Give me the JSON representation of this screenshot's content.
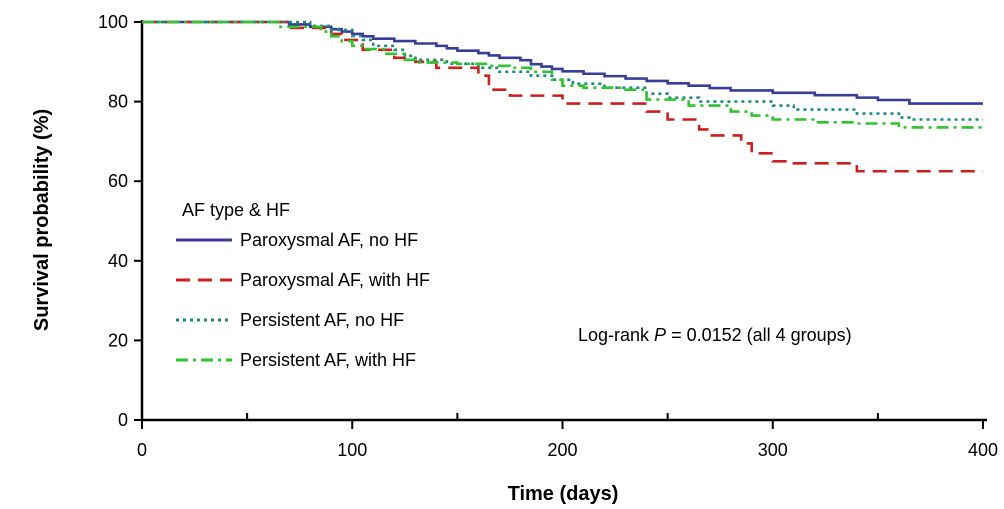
{
  "chart_data": {
    "type": "line",
    "step": true,
    "xlabel": "Time (days)",
    "ylabel": "Survival probability (%)",
    "xlim": [
      0,
      400
    ],
    "ylim": [
      0,
      100
    ],
    "xticks": [
      0,
      100,
      200,
      300,
      400
    ],
    "yticks": [
      0,
      20,
      40,
      60,
      80,
      100
    ],
    "x_minor_step": 50,
    "grid": false,
    "legend": {
      "title": "AF type & HF",
      "position": "lower-left"
    },
    "annotation": {
      "prefix": "Log-rank ",
      "p_symbol": "P",
      "suffix": " = 0.0152 (all 4 groups)"
    },
    "series": [
      {
        "name": "Paroxysmal AF, no HF",
        "color": "#3a3c9a",
        "dash": "solid",
        "points": [
          [
            0,
            100
          ],
          [
            65,
            100
          ],
          [
            70,
            99.4
          ],
          [
            80,
            98.8
          ],
          [
            90,
            98.2
          ],
          [
            95,
            97.6
          ],
          [
            100,
            97
          ],
          [
            105,
            96.4
          ],
          [
            110,
            95.8
          ],
          [
            120,
            95.2
          ],
          [
            130,
            94.6
          ],
          [
            140,
            94
          ],
          [
            145,
            93.4
          ],
          [
            150,
            92.8
          ],
          [
            160,
            92.2
          ],
          [
            165,
            91.6
          ],
          [
            170,
            91
          ],
          [
            180,
            90.4
          ],
          [
            185,
            89.4
          ],
          [
            190,
            88.8
          ],
          [
            195,
            88.2
          ],
          [
            200,
            87.6
          ],
          [
            210,
            87
          ],
          [
            220,
            86.4
          ],
          [
            230,
            85.8
          ],
          [
            240,
            85.2
          ],
          [
            250,
            84.6
          ],
          [
            260,
            84
          ],
          [
            270,
            83.4
          ],
          [
            280,
            82.8
          ],
          [
            300,
            82.2
          ],
          [
            320,
            81.6
          ],
          [
            340,
            81
          ],
          [
            350,
            80.4
          ],
          [
            365,
            79.5
          ],
          [
            400,
            79.5
          ]
        ]
      },
      {
        "name": "Paroxysmal AF, with HF",
        "color": "#cc1f1f",
        "dash": "long-dash",
        "points": [
          [
            0,
            100
          ],
          [
            65,
            100
          ],
          [
            70,
            98.5
          ],
          [
            90,
            97
          ],
          [
            95,
            95.5
          ],
          [
            105,
            93
          ],
          [
            120,
            91
          ],
          [
            130,
            90
          ],
          [
            140,
            88.5
          ],
          [
            160,
            86.5
          ],
          [
            165,
            83
          ],
          [
            175,
            81.5
          ],
          [
            200,
            79.5
          ],
          [
            240,
            77.5
          ],
          [
            250,
            75.5
          ],
          [
            265,
            73
          ],
          [
            270,
            71.5
          ],
          [
            285,
            69.5
          ],
          [
            290,
            67
          ],
          [
            300,
            65
          ],
          [
            310,
            64.5
          ],
          [
            340,
            62.5
          ],
          [
            400,
            62.5
          ]
        ]
      },
      {
        "name": "Persistent AF, no HF",
        "color": "#1a8c7a",
        "dash": "dotted",
        "points": [
          [
            0,
            100
          ],
          [
            75,
            100
          ],
          [
            80,
            99
          ],
          [
            90,
            98
          ],
          [
            100,
            96.5
          ],
          [
            105,
            95.5
          ],
          [
            110,
            94
          ],
          [
            120,
            93
          ],
          [
            125,
            91.5
          ],
          [
            130,
            90.5
          ],
          [
            145,
            89.5
          ],
          [
            160,
            88.5
          ],
          [
            170,
            87.5
          ],
          [
            185,
            86.5
          ],
          [
            195,
            85.5
          ],
          [
            205,
            84.5
          ],
          [
            220,
            83.5
          ],
          [
            240,
            82
          ],
          [
            250,
            81
          ],
          [
            265,
            80
          ],
          [
            300,
            79
          ],
          [
            310,
            78
          ],
          [
            340,
            77
          ],
          [
            360,
            76
          ],
          [
            365,
            75.5
          ],
          [
            400,
            75.5
          ]
        ]
      },
      {
        "name": "Persistent AF, with HF",
        "color": "#2ec42e",
        "dash": "dash-dot",
        "points": [
          [
            0,
            100
          ],
          [
            60,
            100
          ],
          [
            65,
            98.8
          ],
          [
            85,
            97.6
          ],
          [
            90,
            96.4
          ],
          [
            95,
            95.2
          ],
          [
            100,
            94
          ],
          [
            105,
            93.2
          ],
          [
            115,
            92
          ],
          [
            125,
            90.5
          ],
          [
            130,
            89.8
          ],
          [
            150,
            89.5
          ],
          [
            165,
            89
          ],
          [
            175,
            88.5
          ],
          [
            185,
            87.5
          ],
          [
            195,
            85.5
          ],
          [
            200,
            84
          ],
          [
            210,
            83.5
          ],
          [
            230,
            83
          ],
          [
            240,
            80.5
          ],
          [
            260,
            79
          ],
          [
            280,
            77.5
          ],
          [
            290,
            76.5
          ],
          [
            300,
            75.5
          ],
          [
            320,
            74.8
          ],
          [
            340,
            74.5
          ],
          [
            360,
            73.5
          ],
          [
            400,
            73.5
          ]
        ]
      }
    ]
  }
}
